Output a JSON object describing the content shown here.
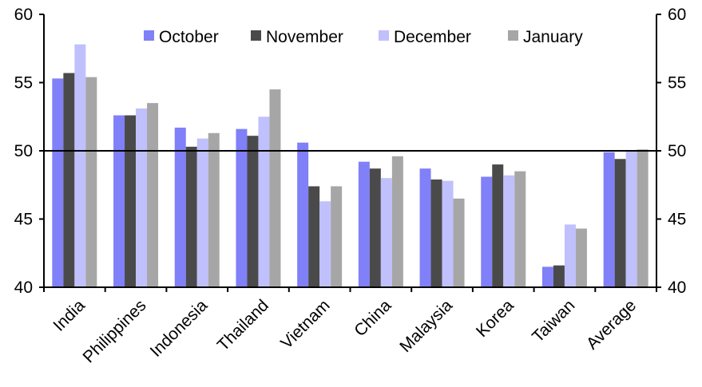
{
  "chart_data": {
    "type": "bar",
    "categories": [
      "India",
      "Philippines",
      "Indonesia",
      "Thailand",
      "Vietnam",
      "China",
      "Malaysia",
      "Korea",
      "Taiwan",
      "Average"
    ],
    "series": [
      {
        "name": "October",
        "color": "#8080f8",
        "values": [
          55.3,
          52.6,
          51.7,
          51.6,
          50.6,
          49.2,
          48.7,
          48.1,
          41.5,
          49.9
        ]
      },
      {
        "name": "November",
        "color": "#4a4a4a",
        "values": [
          55.7,
          52.6,
          50.3,
          51.1,
          47.4,
          48.7,
          47.9,
          49.0,
          41.6,
          49.4
        ]
      },
      {
        "name": "December",
        "color": "#c0c0fc",
        "values": [
          57.8,
          53.1,
          50.9,
          52.5,
          46.3,
          48.0,
          47.8,
          48.2,
          44.6,
          50.0
        ]
      },
      {
        "name": "January",
        "color": "#a6a6a6",
        "values": [
          55.4,
          53.5,
          51.3,
          54.5,
          47.4,
          49.6,
          46.5,
          48.5,
          44.3,
          50.1
        ]
      }
    ],
    "ylim": [
      40,
      60
    ],
    "yticks": [
      40,
      45,
      50,
      55,
      60
    ],
    "reference_line": 50,
    "secondary_axis": true,
    "legend_position": "top",
    "grid": false
  }
}
